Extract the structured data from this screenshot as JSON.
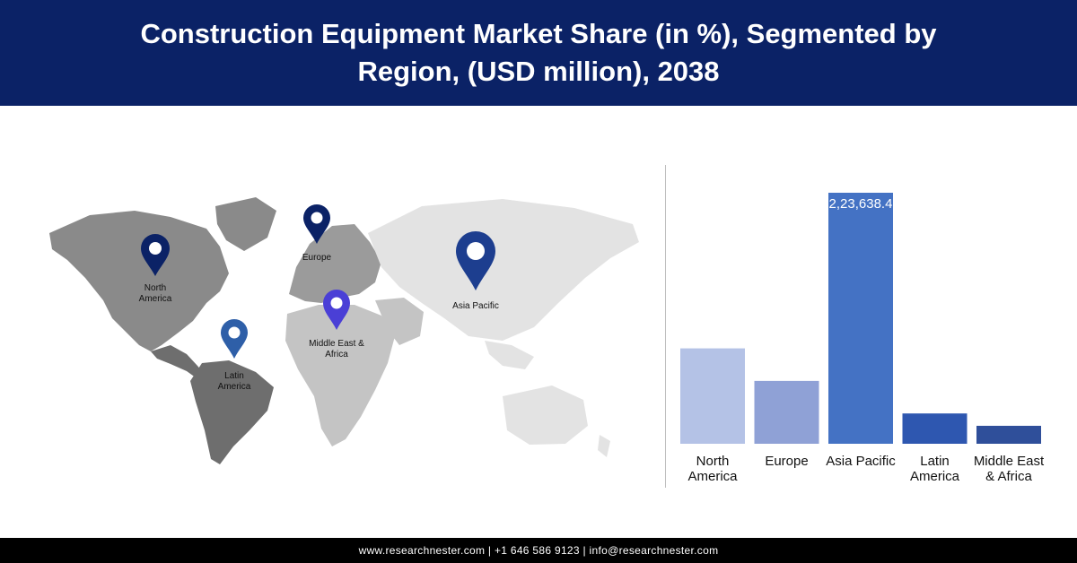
{
  "title": "Construction Equipment Market Share (in %), Segmented by Region, (USD million), 2038",
  "footer": "www.researchnester.com | +1 646 586 9123 | info@researchnester.com",
  "map": {
    "pins": [
      {
        "name": "north-america",
        "label": [
          "North",
          "America"
        ],
        "color": "#0b2266"
      },
      {
        "name": "europe",
        "label": [
          "Europe"
        ],
        "color": "#0b2266"
      },
      {
        "name": "asia-pacific",
        "label": [
          "Asia Pacific"
        ],
        "color": "#1d3e8f"
      },
      {
        "name": "middle-east-africa",
        "label": [
          "Middle East &",
          "Africa"
        ],
        "color": "#4a3fd6"
      },
      {
        "name": "latin-america",
        "label": [
          "Latin",
          "America"
        ],
        "color": "#2e5fa8"
      }
    ]
  },
  "chart_data": {
    "type": "bar",
    "categories": [
      [
        "North",
        "America"
      ],
      [
        "Europe"
      ],
      [
        "Asia Pacific"
      ],
      [
        "Latin",
        "America"
      ],
      [
        "Middle East",
        "& Africa"
      ]
    ],
    "values": [
      85000,
      56000,
      223638.4,
      27000,
      16000
    ],
    "data_labels": [
      "",
      "",
      "2,23,638.4",
      "",
      ""
    ],
    "colors": [
      "#b4c2e6",
      "#8fa1d6",
      "#4472c4",
      "#2e57b0",
      "#2f4f9a"
    ],
    "ylim": [
      0,
      223638.4
    ],
    "grid": false,
    "legend": "none"
  }
}
